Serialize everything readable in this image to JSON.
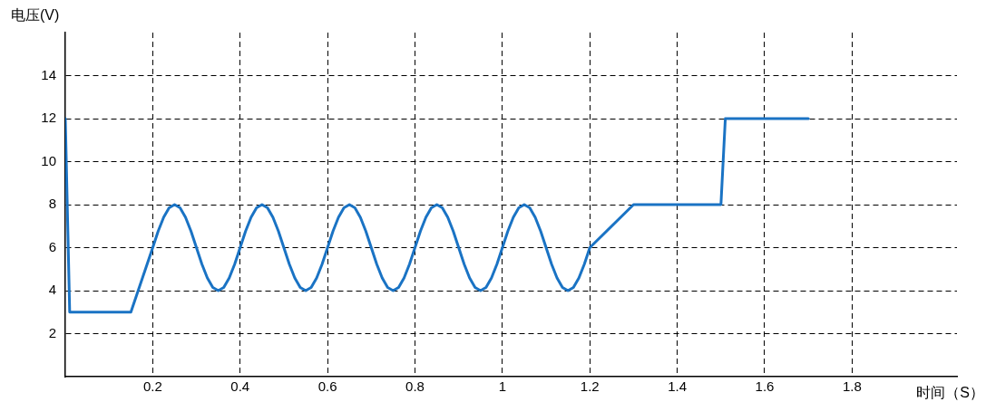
{
  "chart_data": {
    "type": "line",
    "xlabel": "时间（S）",
    "ylabel": "电压(V)",
    "x": [
      0,
      0.01,
      0.15,
      0.2,
      0.2125,
      0.225,
      0.2375,
      0.25,
      0.2625,
      0.275,
      0.2875,
      0.3,
      0.3125,
      0.325,
      0.3375,
      0.35,
      0.3625,
      0.375,
      0.3875,
      0.4,
      0.4125,
      0.425,
      0.4375,
      0.45,
      0.4625,
      0.475,
      0.4875,
      0.5,
      0.5125,
      0.525,
      0.5375,
      0.55,
      0.5625,
      0.575,
      0.5875,
      0.6,
      0.6125,
      0.625,
      0.6375,
      0.65,
      0.6625,
      0.675,
      0.6875,
      0.7,
      0.7125,
      0.725,
      0.7375,
      0.75,
      0.7625,
      0.775,
      0.7875,
      0.8,
      0.8125,
      0.825,
      0.8375,
      0.85,
      0.8625,
      0.875,
      0.8875,
      0.9,
      0.9125,
      0.925,
      0.9375,
      0.95,
      0.9625,
      0.975,
      0.9875,
      1.0,
      1.0125,
      1.025,
      1.0375,
      1.05,
      1.0625,
      1.075,
      1.0875,
      1.1,
      1.1125,
      1.125,
      1.1375,
      1.15,
      1.1625,
      1.175,
      1.1875,
      1.2,
      1.3,
      1.5,
      1.51,
      1.7
    ],
    "series": [
      {
        "color": "#1a73c4",
        "values": [
          12,
          3,
          3,
          6,
          6.77,
          7.41,
          7.85,
          8,
          7.85,
          7.41,
          6.77,
          6,
          5.23,
          4.59,
          4.15,
          4,
          4.15,
          4.59,
          5.23,
          6,
          6.77,
          7.41,
          7.85,
          8,
          7.85,
          7.41,
          6.77,
          6,
          5.23,
          4.59,
          4.15,
          4,
          4.15,
          4.59,
          5.23,
          6,
          6.77,
          7.41,
          7.85,
          8,
          7.85,
          7.41,
          6.77,
          6,
          5.23,
          4.59,
          4.15,
          4,
          4.15,
          4.59,
          5.23,
          6,
          6.77,
          7.41,
          7.85,
          8,
          7.85,
          7.41,
          6.77,
          6,
          5.23,
          4.59,
          4.15,
          4,
          4.15,
          4.59,
          5.23,
          6,
          6.77,
          7.41,
          7.85,
          8,
          7.85,
          7.41,
          6.77,
          6,
          5.23,
          4.59,
          4.15,
          4,
          4.15,
          4.59,
          5.23,
          6,
          8,
          8,
          12,
          12
        ]
      }
    ],
    "xlim": [
      0,
      2.04
    ],
    "xticks": [
      0.2,
      0.4,
      0.6,
      0.8,
      1.0,
      1.2,
      1.4,
      1.6,
      1.8
    ],
    "ylim": [
      0,
      16
    ],
    "yticks": [
      2,
      4,
      6,
      8,
      10,
      12,
      14
    ],
    "grid": true,
    "legend": false,
    "marker": "none",
    "line_style": "solid"
  }
}
